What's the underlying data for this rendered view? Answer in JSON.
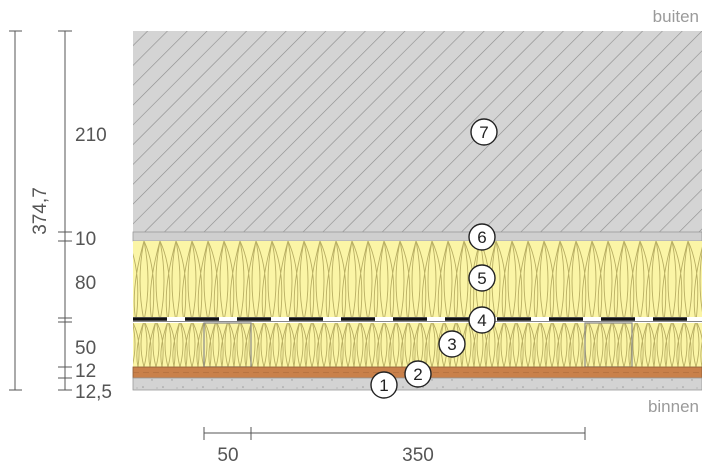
{
  "labels": {
    "outside": "buiten",
    "inside": "binnen"
  },
  "vertical_dimensions": {
    "total": "374,7",
    "layers": [
      "210",
      "10",
      "80",
      "50",
      "12",
      "12,5"
    ]
  },
  "horizontal_dimensions": [
    "50",
    "350"
  ],
  "layer_numbers": [
    "1",
    "2",
    "3",
    "4",
    "5",
    "6",
    "7"
  ],
  "colors": {
    "outer_layer": "#d2d2d2",
    "insulation": "#fbf5a6",
    "board": "#c9804a",
    "plaster": "#cfcfcf",
    "foil": "#111111"
  }
}
